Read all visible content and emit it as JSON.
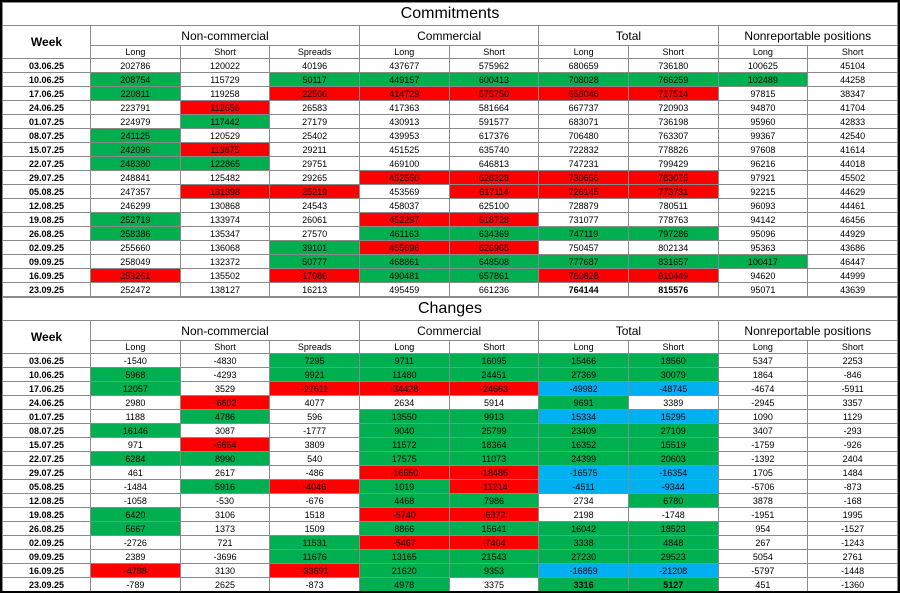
{
  "colors": {
    "green": "#00b050",
    "red": "#ff0000",
    "blue": "#00b0f0"
  },
  "columns": {
    "week_label": "Week",
    "groups": [
      {
        "label": "Non-commercial",
        "cols": [
          "Long",
          "Short",
          "Spreads"
        ]
      },
      {
        "label": "Commercial",
        "cols": [
          "Long",
          "Short"
        ]
      },
      {
        "label": "Total",
        "cols": [
          "Long",
          "Short"
        ]
      },
      {
        "label": "Nonreportable positions",
        "cols": [
          "Long",
          "Short"
        ]
      }
    ]
  },
  "chart_data": [
    {
      "type": "table",
      "id": "commitments",
      "title": "Commitments",
      "rows": [
        {
          "week": "03.06.25",
          "values": [
            "202786",
            "120022",
            "40196",
            "437677",
            "575962",
            "680659",
            "736180",
            "100625",
            "45104"
          ],
          "colors": [
            "",
            "",
            "",
            "",
            "",
            "",
            "",
            "",
            ""
          ]
        },
        {
          "week": "10.06.25",
          "values": [
            "208754",
            "115729",
            "50117",
            "449157",
            "600413",
            "708028",
            "766259",
            "102489",
            "44258"
          ],
          "colors": [
            "g",
            "",
            "g",
            "g",
            "g",
            "g",
            "g",
            "g",
            ""
          ]
        },
        {
          "week": "17.06.25",
          "values": [
            "220811",
            "119258",
            "22506",
            "414729",
            "575750",
            "658046",
            "717514",
            "97815",
            "38347"
          ],
          "colors": [
            "g",
            "",
            "r",
            "r",
            "r",
            "r",
            "r",
            "",
            ""
          ]
        },
        {
          "week": "24.06.25",
          "values": [
            "223791",
            "112656",
            "26583",
            "417363",
            "581664",
            "667737",
            "720903",
            "94870",
            "41704"
          ],
          "colors": [
            "",
            "r",
            "",
            "",
            "",
            "",
            "",
            "",
            ""
          ]
        },
        {
          "week": "01.07.25",
          "values": [
            "224979",
            "117442",
            "27179",
            "430913",
            "591577",
            "683071",
            "736198",
            "95960",
            "42833"
          ],
          "colors": [
            "",
            "g",
            "",
            "",
            "",
            "",
            "",
            "",
            ""
          ]
        },
        {
          "week": "08.07.25",
          "values": [
            "241125",
            "120529",
            "25402",
            "439953",
            "617376",
            "706480",
            "763307",
            "99367",
            "42540"
          ],
          "colors": [
            "g",
            "",
            "",
            "",
            "",
            "",
            "",
            "",
            ""
          ]
        },
        {
          "week": "15.07.25",
          "values": [
            "242096",
            "113875",
            "29211",
            "451525",
            "635740",
            "722832",
            "778826",
            "97608",
            "41614"
          ],
          "colors": [
            "g",
            "r",
            "",
            "",
            "",
            "",
            "",
            "",
            ""
          ]
        },
        {
          "week": "22.07.25",
          "values": [
            "248380",
            "122865",
            "29751",
            "469100",
            "646813",
            "747231",
            "799429",
            "96216",
            "44018"
          ],
          "colors": [
            "g",
            "g",
            "",
            "",
            "",
            "",
            "",
            "",
            ""
          ]
        },
        {
          "week": "29.07.25",
          "values": [
            "248841",
            "125482",
            "29265",
            "452550",
            "628328",
            "730656",
            "783075",
            "97921",
            "45502"
          ],
          "colors": [
            "",
            "",
            "",
            "r",
            "r",
            "r",
            "r",
            "",
            ""
          ]
        },
        {
          "week": "05.08.25",
          "values": [
            "247357",
            "131398",
            "25219",
            "453569",
            "617114",
            "726145",
            "773731",
            "92215",
            "44629"
          ],
          "colors": [
            "",
            "r",
            "r",
            "",
            "r",
            "r",
            "r",
            "",
            ""
          ]
        },
        {
          "week": "12.08.25",
          "values": [
            "246299",
            "130868",
            "24543",
            "458037",
            "625100",
            "728879",
            "780511",
            "96093",
            "44461"
          ],
          "colors": [
            "",
            "",
            "",
            "",
            "",
            "",
            "",
            "",
            ""
          ]
        },
        {
          "week": "19.08.25",
          "values": [
            "252719",
            "133974",
            "26061",
            "452297",
            "618728",
            "731077",
            "778763",
            "94142",
            "46456"
          ],
          "colors": [
            "g",
            "",
            "",
            "r",
            "r",
            "",
            "",
            "",
            ""
          ]
        },
        {
          "week": "26.08.25",
          "values": [
            "258386",
            "135347",
            "27570",
            "461163",
            "634369",
            "747119",
            "797286",
            "95096",
            "44929"
          ],
          "colors": [
            "g",
            "",
            "",
            "g",
            "g",
            "g",
            "g",
            "",
            ""
          ]
        },
        {
          "week": "02.09.25",
          "values": [
            "255660",
            "136068",
            "39101",
            "455696",
            "626965",
            "750457",
            "802134",
            "95363",
            "43686"
          ],
          "colors": [
            "",
            "",
            "g",
            "r",
            "r",
            "",
            "",
            "",
            ""
          ]
        },
        {
          "week": "09.09.25",
          "values": [
            "258049",
            "132372",
            "50777",
            "468861",
            "648508",
            "777687",
            "831657",
            "100417",
            "46447"
          ],
          "colors": [
            "",
            "",
            "g",
            "g",
            "g",
            "g",
            "g",
            "g",
            ""
          ]
        },
        {
          "week": "16.09.25",
          "values": [
            "253261",
            "135502",
            "17086",
            "490481",
            "657861",
            "760828",
            "810449",
            "94620",
            "44999"
          ],
          "colors": [
            "r",
            "",
            "r",
            "g",
            "g",
            "r",
            "r",
            "",
            ""
          ]
        },
        {
          "week": "23.09.25",
          "values": [
            "252472",
            "138127",
            "16213",
            "495459",
            "661236",
            "764144",
            "815576",
            "95071",
            "43639"
          ],
          "colors": [
            "",
            "",
            "",
            "",
            "",
            "",
            "",
            "",
            ""
          ],
          "bold_value_indexes": [
            5,
            6
          ]
        }
      ]
    },
    {
      "type": "table",
      "id": "changes",
      "title": "Changes",
      "rows": [
        {
          "week": "03.06.25",
          "values": [
            "-1540",
            "-4830",
            "7295",
            "9711",
            "16095",
            "15466",
            "18560",
            "5347",
            "2253"
          ],
          "colors": [
            "",
            "",
            "g",
            "g",
            "g",
            "g",
            "g",
            "",
            ""
          ]
        },
        {
          "week": "10.06.25",
          "values": [
            "5968",
            "-4293",
            "9921",
            "11480",
            "24451",
            "27369",
            "30079",
            "1864",
            "-846"
          ],
          "colors": [
            "g",
            "",
            "g",
            "g",
            "g",
            "g",
            "g",
            "",
            ""
          ]
        },
        {
          "week": "17.06.25",
          "values": [
            "12057",
            "3529",
            "-27611",
            "-34428",
            "-24663",
            "-49982",
            "-48745",
            "-4674",
            "-5911"
          ],
          "colors": [
            "g",
            "",
            "r",
            "r",
            "r",
            "b",
            "b",
            "",
            ""
          ]
        },
        {
          "week": "24.06.25",
          "values": [
            "2980",
            "-6602",
            "4077",
            "2634",
            "5914",
            "9691",
            "3389",
            "-2945",
            "3357"
          ],
          "colors": [
            "",
            "r",
            "",
            "",
            "",
            "g",
            "",
            "",
            ""
          ]
        },
        {
          "week": "01.07.25",
          "values": [
            "1188",
            "4786",
            "596",
            "13550",
            "9913",
            "15334",
            "15295",
            "1090",
            "1129"
          ],
          "colors": [
            "",
            "g",
            "",
            "g",
            "g",
            "b",
            "b",
            "",
            ""
          ]
        },
        {
          "week": "08.07.25",
          "values": [
            "16146",
            "3087",
            "-1777",
            "9040",
            "25799",
            "23409",
            "27109",
            "3407",
            "-293"
          ],
          "colors": [
            "g",
            "",
            "",
            "g",
            "g",
            "g",
            "g",
            "",
            ""
          ]
        },
        {
          "week": "15.07.25",
          "values": [
            "971",
            "-6654",
            "3809",
            "11572",
            "18364",
            "16352",
            "15519",
            "-1759",
            "-926"
          ],
          "colors": [
            "",
            "r",
            "",
            "g",
            "g",
            "g",
            "g",
            "",
            ""
          ]
        },
        {
          "week": "22.07.25",
          "values": [
            "6284",
            "8990",
            "540",
            "17575",
            "11073",
            "24399",
            "20603",
            "-1392",
            "2404"
          ],
          "colors": [
            "g",
            "g",
            "",
            "g",
            "g",
            "g",
            "g",
            "",
            ""
          ]
        },
        {
          "week": "29.07.25",
          "values": [
            "461",
            "2617",
            "-486",
            "-16550",
            "-18485",
            "-16575",
            "-16354",
            "1705",
            "1484"
          ],
          "colors": [
            "",
            "",
            "",
            "r",
            "r",
            "b",
            "b",
            "",
            ""
          ]
        },
        {
          "week": "05.08.25",
          "values": [
            "-1484",
            "5916",
            "-4046",
            "1019",
            "-11214",
            "-4511",
            "-9344",
            "-5706",
            "-873"
          ],
          "colors": [
            "",
            "g",
            "r",
            "g",
            "r",
            "b",
            "b",
            "",
            ""
          ]
        },
        {
          "week": "12.08.25",
          "values": [
            "-1058",
            "-530",
            "-676",
            "4468",
            "7986",
            "2734",
            "6780",
            "3878",
            "-168"
          ],
          "colors": [
            "",
            "",
            "",
            "g",
            "g",
            "",
            "g",
            "",
            ""
          ]
        },
        {
          "week": "19.08.25",
          "values": [
            "6420",
            "3106",
            "1518",
            "-5740",
            "-6372",
            "2198",
            "-1748",
            "-1951",
            "1995"
          ],
          "colors": [
            "g",
            "",
            "",
            "r",
            "r",
            "",
            "",
            "",
            ""
          ]
        },
        {
          "week": "26.08.25",
          "values": [
            "5667",
            "1373",
            "1509",
            "8866",
            "15641",
            "16042",
            "18523",
            "954",
            "-1527"
          ],
          "colors": [
            "g",
            "",
            "",
            "g",
            "g",
            "g",
            "g",
            "",
            ""
          ]
        },
        {
          "week": "02.09.25",
          "values": [
            "-2726",
            "721",
            "11531",
            "-5467",
            "-7404",
            "3338",
            "4848",
            "267",
            "-1243"
          ],
          "colors": [
            "",
            "",
            "g",
            "r",
            "r",
            "g",
            "g",
            "",
            ""
          ]
        },
        {
          "week": "09.09.25",
          "values": [
            "2389",
            "-3696",
            "11676",
            "13165",
            "21543",
            "27230",
            "29523",
            "5054",
            "2761"
          ],
          "colors": [
            "",
            "",
            "g",
            "g",
            "g",
            "g",
            "g",
            "",
            ""
          ]
        },
        {
          "week": "16.09.25",
          "values": [
            "-4788",
            "3130",
            "-33691",
            "21620",
            "9353",
            "-16859",
            "-21208",
            "-5797",
            "-1448"
          ],
          "colors": [
            "r",
            "",
            "r",
            "g",
            "g",
            "b",
            "b",
            "",
            ""
          ]
        },
        {
          "week": "23.09.25",
          "values": [
            "-789",
            "2625",
            "-873",
            "4978",
            "3375",
            "3316",
            "5127",
            "451",
            "-1360"
          ],
          "colors": [
            "",
            "",
            "",
            "g",
            "",
            "g",
            "g",
            "",
            ""
          ],
          "bold_value_indexes": [
            5,
            6
          ]
        }
      ]
    }
  ]
}
